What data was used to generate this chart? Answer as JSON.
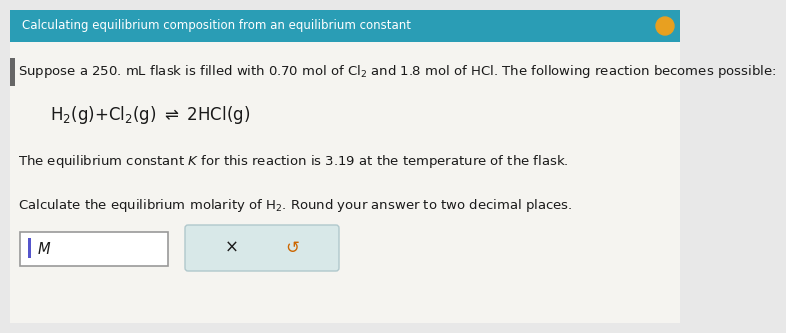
{
  "title": "Calculating equilibrium composition from an equilibrium constant",
  "title_bg": "#2a9db5",
  "title_color": "#ffffff",
  "title_fontsize": 8.5,
  "body_bg": "#e8e8e8",
  "main_bg": "#f5f4f0",
  "line1": "Suppose a 250. mL flask is filled with 0.70 mol of Cl$_2$ and 1.8 mol of HCl. The following reaction becomes possible:",
  "reaction": "H$_2$(g)+Cl$_2$(g) $\\rightleftharpoons$ 2HCl(g)",
  "line3": "The equilibrium constant $\\mathit{K}$ for this reaction is 3.19 at the temperature of the flask.",
  "line4": "Calculate the equilibrium molarity of H$_2$. Round your answer to two decimal places.",
  "input_box_color": "#ffffff",
  "input_box_border": "#999999",
  "input_label": "M",
  "button_bg": "#d8e8e8",
  "button_border": "#b0c8cc",
  "button_x": "×",
  "button_undo": "↺",
  "body_fontsize": 9.5,
  "reaction_fontsize": 12,
  "font_color": "#1a1a1a",
  "tab_color": "#666666"
}
